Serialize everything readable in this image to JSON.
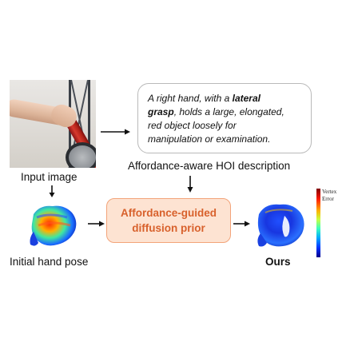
{
  "labels": {
    "input_image": "Input image",
    "hoi_description": "Affordance-aware HOI description",
    "initial_hand_pose": "Initial hand pose",
    "ours": "Ours"
  },
  "description": {
    "line1_pre": "A right hand, with a ",
    "line1_bold": "lateral",
    "line2_bold": "grasp",
    "line2_post": ", holds a large, elongated,",
    "line3": "red object loosely for",
    "line4": "manipulation or examination."
  },
  "prior_box": {
    "line1": "Affordance-guided",
    "line2": "diffusion prior"
  },
  "colorbar": {
    "title_line1": "Vertex",
    "title_line2": "Error",
    "gradient": [
      "#7f0000",
      "#ff1a00",
      "#ffb000",
      "#c8ff40",
      "#3cffbe",
      "#00a8ff",
      "#0033ff",
      "#00008a"
    ]
  },
  "colors": {
    "prior_fill": "#fde3d2",
    "prior_border": "#f3a47a",
    "prior_text": "#d8612c",
    "arrow": "#111111"
  }
}
